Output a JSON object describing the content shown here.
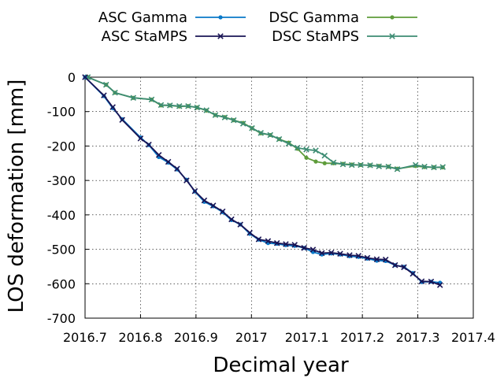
{
  "chart_data": {
    "type": "line",
    "xlabel": "Decimal year",
    "ylabel": "LOS deformation [mm]",
    "xlim": [
      2016.7,
      2017.4
    ],
    "ylim": [
      -700,
      0
    ],
    "x_ticks": [
      2016.7,
      2016.8,
      2016.9,
      2017.0,
      2017.1,
      2017.2,
      2017.3,
      2017.4
    ],
    "x_tick_labels": [
      "2016.7",
      "2016.8",
      "2016.9",
      "2017",
      "2017.1",
      "2017.2",
      "2017.3",
      "2017.4"
    ],
    "y_ticks": [
      0,
      -100,
      -200,
      -300,
      -400,
      -500,
      -600,
      -700
    ],
    "y_tick_labels": [
      "0",
      "-100",
      "-200",
      "-300",
      "-400",
      "-500",
      "-600",
      "-700"
    ],
    "grid": true,
    "legend_position": "top",
    "series": [
      {
        "name": "ASC Gamma",
        "color": "#0a79c8",
        "marker": "circle",
        "x": [
          2016.7,
          2016.734,
          2016.75,
          2016.767,
          2016.8,
          2016.815,
          2016.833,
          2016.85,
          2016.866,
          2016.883,
          2016.898,
          2016.915,
          2016.931,
          2016.948,
          2016.964,
          2016.98,
          2016.997,
          2017.013,
          2017.03,
          2017.046,
          2017.062,
          2017.078,
          2017.095,
          2017.111,
          2017.127,
          2017.144,
          2017.16,
          2017.177,
          2017.193,
          2017.209,
          2017.226,
          2017.242,
          2017.259,
          2017.275,
          2017.291,
          2017.307,
          2017.324,
          2017.34
        ],
        "y": [
          0,
          -55,
          -90,
          -122,
          -175,
          -197,
          -232,
          -248,
          -268,
          -298,
          -332,
          -362,
          -375,
          -392,
          -415,
          -428,
          -455,
          -472,
          -482,
          -484,
          -488,
          -490,
          -496,
          -508,
          -515,
          -512,
          -515,
          -520,
          -522,
          -527,
          -533,
          -534,
          -546,
          -551,
          -569,
          -595,
          -594,
          -597
        ]
      },
      {
        "name": "ASC StaMPS",
        "color": "#191454",
        "marker": "x",
        "x": [
          2016.7,
          2016.734,
          2016.75,
          2016.767,
          2016.8,
          2016.815,
          2016.833,
          2016.85,
          2016.866,
          2016.883,
          2016.898,
          2016.915,
          2016.931,
          2016.948,
          2016.964,
          2016.98,
          2016.997,
          2017.013,
          2017.03,
          2017.046,
          2017.062,
          2017.078,
          2017.095,
          2017.111,
          2017.127,
          2017.144,
          2017.16,
          2017.177,
          2017.193,
          2017.209,
          2017.226,
          2017.242,
          2017.259,
          2017.275,
          2017.291,
          2017.307,
          2017.324,
          2017.34
        ],
        "y": [
          0,
          -53,
          -87,
          -124,
          -178,
          -196,
          -226,
          -246,
          -266,
          -300,
          -331,
          -358,
          -373,
          -390,
          -413,
          -428,
          -452,
          -471,
          -476,
          -482,
          -485,
          -487,
          -496,
          -501,
          -511,
          -510,
          -513,
          -517,
          -519,
          -525,
          -529,
          -530,
          -546,
          -552,
          -571,
          -593,
          -594,
          -604
        ]
      },
      {
        "name": "DSC Gamma",
        "color": "#5e9c3a",
        "marker": "circle",
        "x": [
          2016.705,
          2016.738,
          2016.754,
          2016.787,
          2016.82,
          2016.837,
          2016.853,
          2016.87,
          2016.886,
          2016.902,
          2016.919,
          2016.935,
          2016.952,
          2016.968,
          2016.985,
          2017.001,
          2017.017,
          2017.034,
          2017.05,
          2017.067,
          2017.083,
          2017.099,
          2017.116,
          2017.132,
          2017.148,
          2017.165,
          2017.181,
          2017.197,
          2017.214,
          2017.23,
          2017.247,
          2017.263,
          2017.296,
          2017.312,
          2017.329,
          2017.345
        ],
        "y": [
          0,
          -22,
          -45,
          -60,
          -65,
          -82,
          -82,
          -85,
          -84,
          -88,
          -97,
          -110,
          -116,
          -125,
          -133,
          -148,
          -163,
          -168,
          -180,
          -190,
          -208,
          -234,
          -245,
          -250,
          -250,
          -252,
          -254,
          -255,
          -256,
          -258,
          -260,
          -266,
          -258,
          -261,
          -262,
          -262
        ]
      },
      {
        "name": "DSC StaMPS",
        "color": "#3d8c73",
        "marker": "x",
        "x": [
          2016.705,
          2016.738,
          2016.754,
          2016.787,
          2016.82,
          2016.837,
          2016.853,
          2016.87,
          2016.886,
          2016.902,
          2016.919,
          2016.935,
          2016.952,
          2016.968,
          2016.985,
          2017.001,
          2017.017,
          2017.034,
          2017.05,
          2017.067,
          2017.083,
          2017.099,
          2017.116,
          2017.132,
          2017.148,
          2017.165,
          2017.181,
          2017.197,
          2017.214,
          2017.23,
          2017.247,
          2017.263,
          2017.296,
          2017.312,
          2017.329,
          2017.345
        ],
        "y": [
          0,
          -22,
          -45,
          -60,
          -65,
          -81,
          -82,
          -84,
          -84,
          -88,
          -96,
          -110,
          -117,
          -125,
          -135,
          -148,
          -162,
          -168,
          -180,
          -193,
          -205,
          -210,
          -213,
          -228,
          -248,
          -253,
          -255,
          -255,
          -256,
          -259,
          -260,
          -267,
          -255,
          -260,
          -262,
          -261
        ]
      }
    ]
  }
}
